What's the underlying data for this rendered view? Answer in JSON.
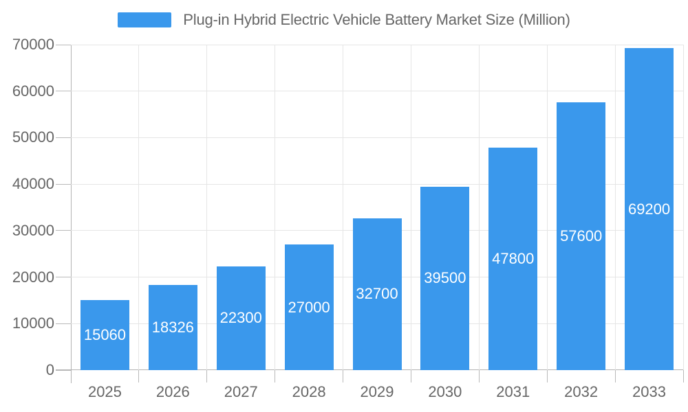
{
  "chart_data": {
    "type": "bar",
    "title": "Plug-in Hybrid Electric Vehicle Battery Market Size (Million)",
    "series_name": "Plug-in Hybrid Electric Vehicle Battery Market Size (Million)",
    "categories": [
      "2025",
      "2026",
      "2027",
      "2028",
      "2029",
      "2030",
      "2031",
      "2032",
      "2033"
    ],
    "values": [
      15060,
      18326,
      22300,
      27000,
      32700,
      39500,
      47800,
      57600,
      69200
    ],
    "data_labels": [
      15060,
      18326,
      22300,
      27000,
      32700,
      39500,
      47800,
      57600,
      69200
    ],
    "xlabel": "",
    "ylabel": "",
    "ylim": [
      0,
      70000
    ],
    "yticks": [
      0,
      10000,
      20000,
      30000,
      40000,
      50000,
      60000,
      70000
    ],
    "grid": true,
    "legend_position": "top",
    "colors": {
      "bar": "#3A98EC",
      "bar_label_text": "#ffffff",
      "axis_text": "#666666",
      "legend_text": "#666666",
      "gridline": "#e5e5e5",
      "axis_line": "#b3b3b3",
      "tick": "#b9b9b9",
      "background": "#ffffff"
    }
  }
}
